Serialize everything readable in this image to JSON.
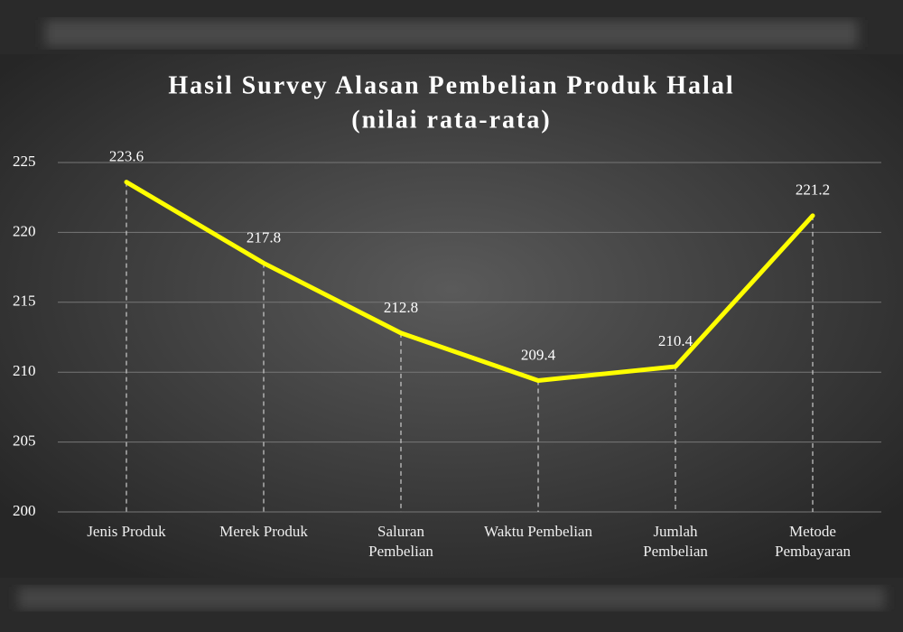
{
  "chart_data": {
    "type": "line",
    "title": "Hasil Survey Alasan Pembelian Produk Halal",
    "subtitle": "(nilai rata-rata)",
    "categories": [
      "Jenis Produk",
      "Merek Produk",
      "Saluran\nPembelian",
      "Waktu Pembelian",
      "Jumlah\nPembelian",
      "Metode\nPembayaran"
    ],
    "series": [
      {
        "name": "Nilai rata-rata",
        "color": "#ffff00",
        "values": [
          223.6,
          217.8,
          212.8,
          209.4,
          210.4,
          221.2
        ]
      }
    ],
    "ylim": [
      200,
      225
    ],
    "yticks": [
      200,
      205,
      210,
      215,
      220,
      225
    ],
    "grid": true,
    "drop_lines": true,
    "legend": false
  }
}
